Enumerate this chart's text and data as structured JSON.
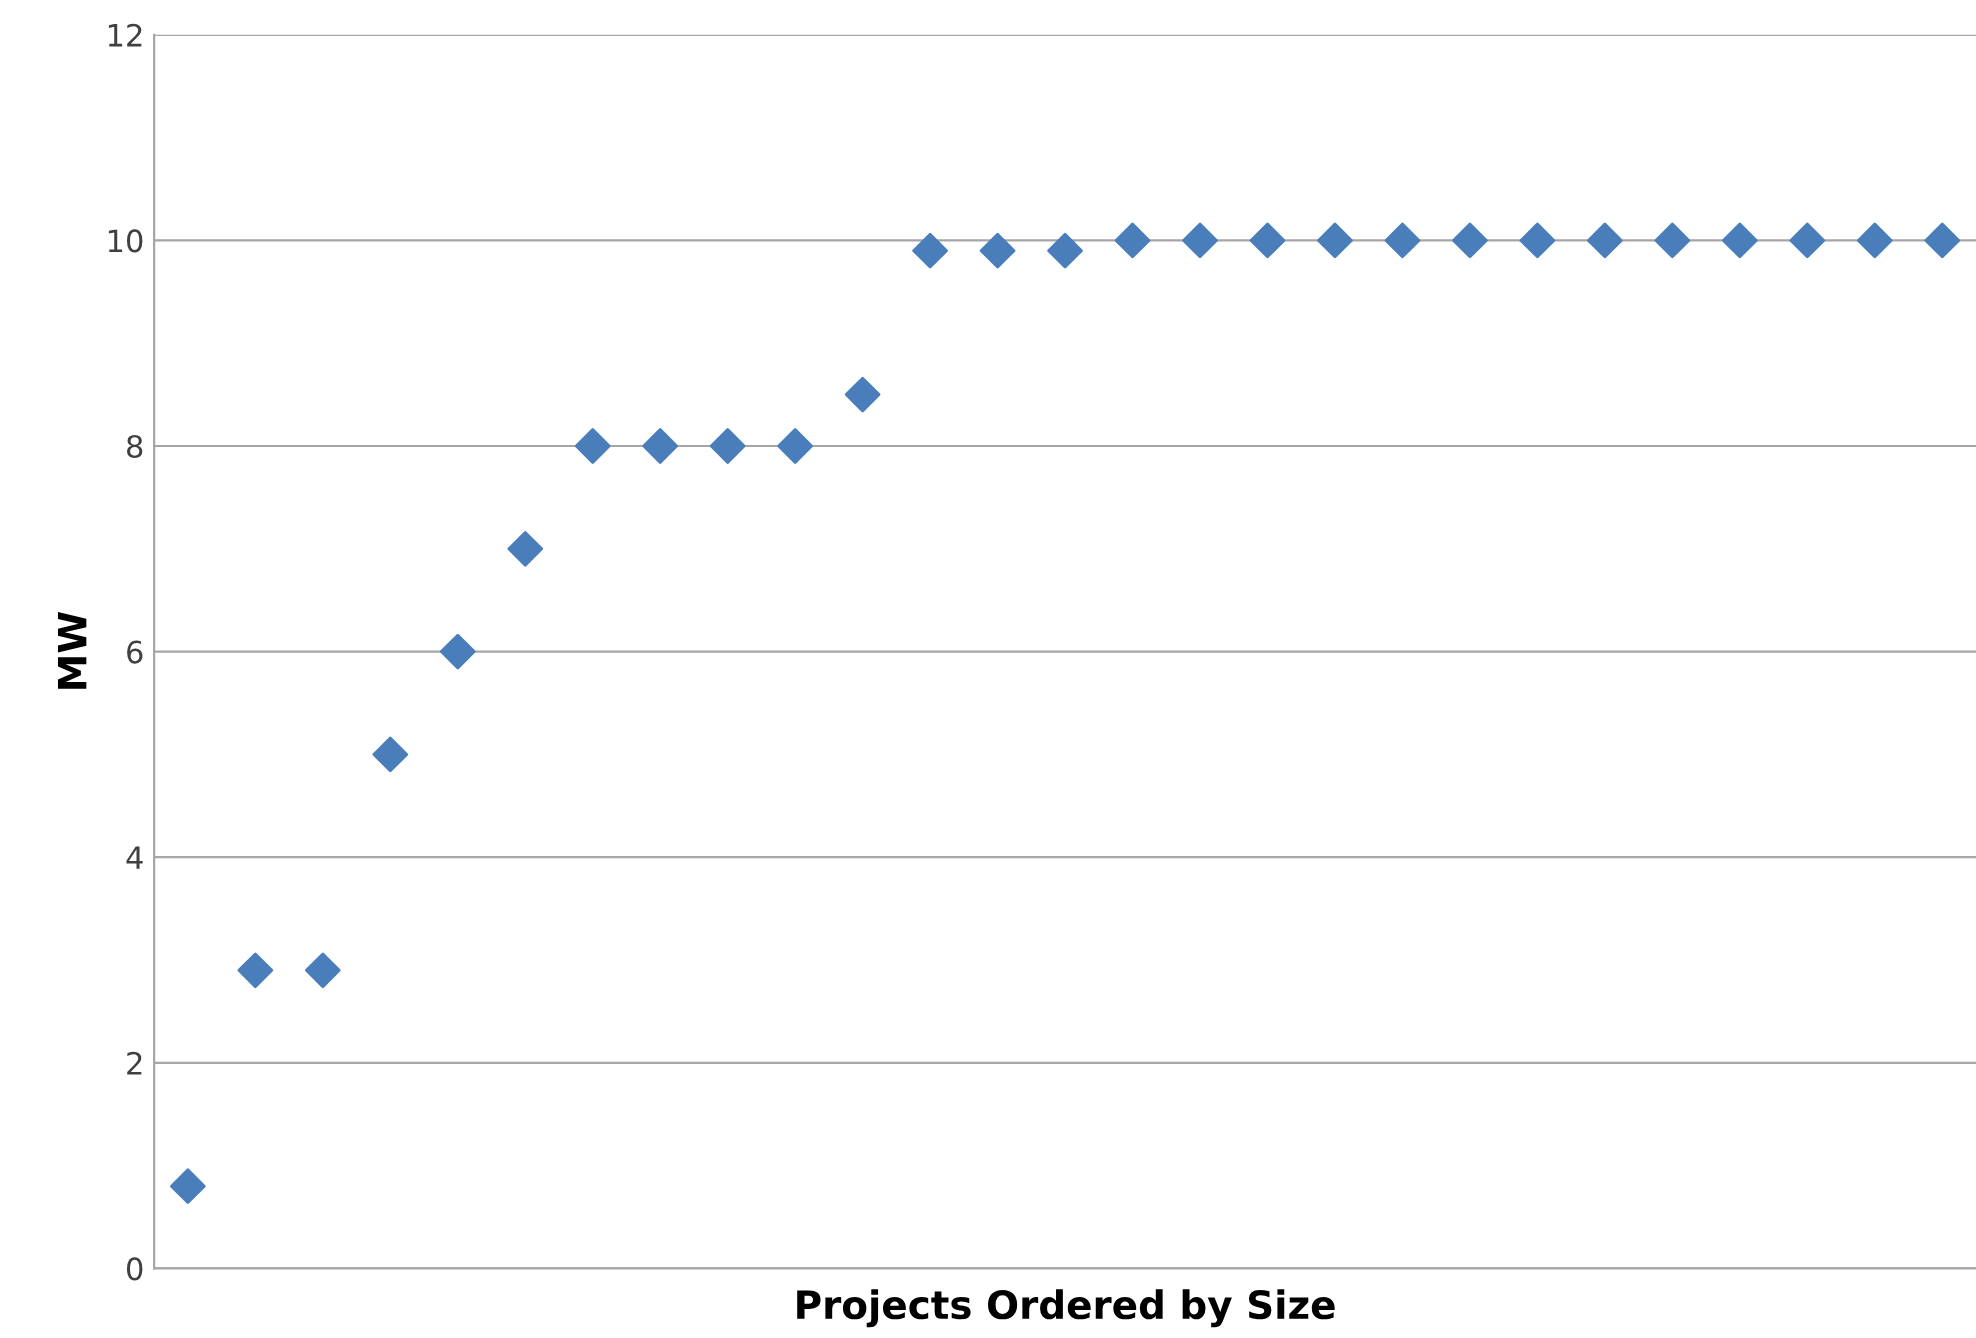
{
  "chart_data": {
    "type": "scatter",
    "xlabel": "Projects Ordered by Size",
    "ylabel": "MW",
    "categories": [
      null,
      null,
      null,
      null,
      null,
      null,
      null,
      null,
      null,
      null,
      null,
      null,
      null,
      null,
      null,
      null,
      null,
      null,
      null,
      null,
      null,
      null,
      null,
      null,
      null,
      null,
      null
    ],
    "series": [
      {
        "color": "#4a7ebb",
        "values": [
          0.8,
          2.9,
          2.9,
          5,
          6,
          7,
          8,
          8,
          8,
          8,
          8.5,
          9.9,
          9.9,
          9.9,
          10,
          10,
          10,
          10,
          10,
          10,
          10,
          10,
          10,
          10,
          10,
          10,
          10
        ]
      }
    ],
    "ylim": [
      0,
      12
    ],
    "yticks": [
      0,
      2,
      4,
      6,
      8,
      10,
      12
    ],
    "grid": "y",
    "marker": "diamond",
    "legend": false
  }
}
